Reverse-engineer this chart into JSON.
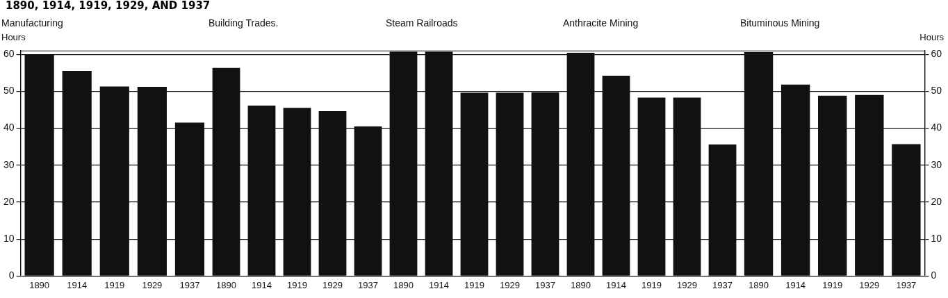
{
  "chart_data": [
    {
      "type": "bar",
      "title": "Manufacturing",
      "ylabel": "Hours",
      "annotations": [
        "1890, 1914, 1919, 1929, AND 1937"
      ],
      "categories": [
        "1890",
        "1914",
        "1919",
        "1929",
        "1937"
      ],
      "values": [
        60,
        55.5,
        51.3,
        51.2,
        41.5
      ],
      "color": "#111111",
      "ylim": [
        0,
        61
      ],
      "yticks": [
        0,
        10,
        20,
        30,
        40,
        50,
        60
      ],
      "grid": "y",
      "legend": false
    },
    {
      "type": "bar",
      "title": "Building Trades.",
      "categories": [
        "1890",
        "1914",
        "1919",
        "1929",
        "1937"
      ],
      "values": [
        56.3,
        46.1,
        45.5,
        44.6,
        40.5
      ],
      "color": "#111111",
      "ylim": [
        0,
        61
      ],
      "yticks": [
        0,
        10,
        20,
        30,
        40,
        50,
        60
      ],
      "grid": "y",
      "legend": false,
      "tick_labels": "x"
    },
    {
      "type": "bar",
      "title": "Steam Railroads",
      "categories": [
        "1890",
        "1914",
        "1919",
        "1929",
        "1937"
      ],
      "values": [
        60.7,
        60.7,
        49.6,
        49.6,
        49.7
      ],
      "color": "#111111",
      "ylim": [
        0,
        61
      ],
      "yticks": [
        0,
        10,
        20,
        30,
        40,
        50,
        60
      ],
      "grid": "y",
      "legend": false,
      "tick_labels": "x"
    },
    {
      "type": "bar",
      "title": "Anthracite Mining",
      "categories": [
        "1890",
        "1914",
        "1919",
        "1929",
        "1937"
      ],
      "values": [
        60.4,
        54.2,
        48.3,
        48.3,
        35.6
      ],
      "color": "#111111",
      "ylim": [
        0,
        61
      ],
      "yticks": [
        0,
        10,
        20,
        30,
        40,
        50,
        60
      ],
      "grid": "y",
      "legend": false,
      "tick_labels": "x"
    },
    {
      "type": "bar",
      "title": "Bituminous Mining",
      "y2label": "Hours",
      "categories": [
        "1890",
        "1914",
        "1919",
        "1929",
        "1937"
      ],
      "series": [
        {
          "values": [
            60.6,
            51.8,
            48.8,
            49.0,
            35.7
          ],
          "color": "#111111",
          "axis": "y2"
        }
      ],
      "y2lim": [
        0,
        61
      ],
      "y2ticks": [
        0,
        10,
        20,
        30,
        40,
        50,
        60
      ],
      "grid": "y",
      "legend": false
    }
  ]
}
